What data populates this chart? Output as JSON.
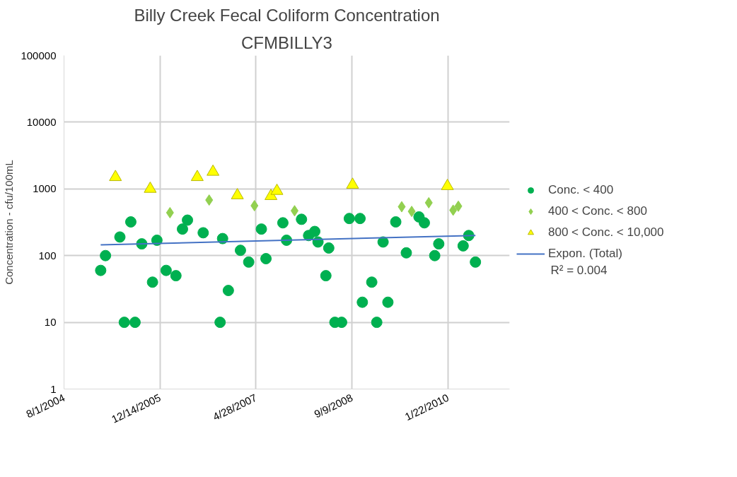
{
  "chart_data": {
    "type": "scatter",
    "title": "Billy Creek Fecal Coliform Concentration",
    "subtitle": "CFMBILLY3",
    "ylabel": "Concentration - cfu/100mL",
    "log": "y",
    "grid": true,
    "legend": "right",
    "xlim": [
      "2004-08-01",
      "2010-12-09"
    ],
    "xticks": [
      {
        "value": "2004-08-01",
        "label": "8/1/2004"
      },
      {
        "value": "2005-12-14",
        "label": "12/14/2005"
      },
      {
        "value": "2007-04-28",
        "label": "4/28/2007"
      },
      {
        "value": "2008-09-09",
        "label": "9/9/2008"
      },
      {
        "value": "2010-01-22",
        "label": "1/22/2010"
      }
    ],
    "ylim": [
      1,
      100000
    ],
    "yticks": [
      1,
      10,
      100,
      1000,
      10000,
      100000
    ],
    "annotations": [
      "R² = 0.004"
    ],
    "series": [
      {
        "name": "Conc. < 400",
        "color": "#00b050",
        "marker": "circle",
        "x": [
          "2005-02-08",
          "2005-03-05",
          "2005-05-19",
          "2005-06-11",
          "2005-07-15",
          "2005-08-06",
          "2005-09-10",
          "2005-11-05",
          "2005-11-28",
          "2006-01-15",
          "2006-03-07",
          "2006-04-10",
          "2006-05-06",
          "2006-07-27",
          "2006-10-23",
          "2006-11-05",
          "2006-12-05",
          "2007-02-06",
          "2007-03-21",
          "2007-05-26",
          "2007-06-19",
          "2007-09-15",
          "2007-10-04",
          "2007-12-21",
          "2008-01-27",
          "2008-02-28",
          "2008-03-16",
          "2008-04-26",
          "2008-05-11",
          "2008-06-12",
          "2008-07-17",
          "2008-08-26",
          "2008-10-21",
          "2008-11-02",
          "2008-12-21",
          "2009-01-16",
          "2009-02-18",
          "2009-03-15",
          "2009-04-25",
          "2009-06-19",
          "2009-08-24",
          "2009-09-21",
          "2009-11-14",
          "2009-12-05",
          "2010-04-11",
          "2010-05-10",
          "2010-06-14"
        ],
        "values": [
          60,
          100,
          190,
          10,
          320,
          10,
          150,
          40,
          170,
          60,
          50,
          250,
          340,
          220,
          10,
          180,
          30,
          120,
          80,
          250,
          90,
          310,
          170,
          350,
          200,
          230,
          160,
          50,
          130,
          10,
          10,
          360,
          360,
          20,
          40,
          10,
          160,
          20,
          320,
          110,
          380,
          310,
          100,
          150,
          140,
          200,
          80
        ]
      },
      {
        "name": "400 < Conc. < 800",
        "color": "#92d050",
        "marker": "diamond",
        "x": [
          "2006-02-04",
          "2006-08-27",
          "2007-04-20",
          "2007-11-15",
          "2009-05-26",
          "2009-07-17",
          "2009-10-14",
          "2010-02-18",
          "2010-03-17"
        ],
        "values": [
          440,
          680,
          560,
          470,
          540,
          460,
          620,
          480,
          550
        ]
      },
      {
        "name": "800 < Conc. < 10,000",
        "color": "#ffff00",
        "marker": "triangle",
        "x": [
          "2005-04-26",
          "2005-10-24",
          "2006-06-26",
          "2006-09-16",
          "2007-01-21",
          "2007-07-15",
          "2007-08-15",
          "2008-09-12",
          "2010-01-19"
        ],
        "values": [
          1500,
          1000,
          1500,
          1800,
          800,
          780,
          930,
          1150,
          1100
        ]
      },
      {
        "name": "Expon. (Total)",
        "type": "line",
        "color": "#4472c4",
        "line_style": "solid",
        "x": [
          "2005-02-08",
          "2010-06-14"
        ],
        "values": [
          145,
          200
        ]
      }
    ]
  }
}
